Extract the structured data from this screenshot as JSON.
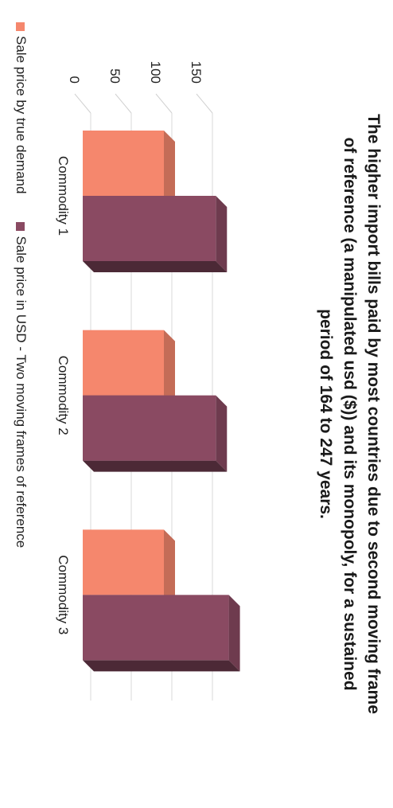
{
  "chart_data": {
    "type": "bar",
    "title": "The higher import bills paid by most countries due to second moving frame of reference (a manipulated usd ($)) and its monopoly, for a sustained period of 164 to 247 years.",
    "categories": [
      "Commodity 1",
      "Commodity 2",
      "Commodity 3"
    ],
    "series": [
      {
        "name": "Sale price by true demand",
        "values": [
          100,
          100,
          100
        ],
        "color": "#f5876d"
      },
      {
        "name": "Sale price in USD - Two moving frames of reference",
        "values": [
          164,
          164,
          180
        ],
        "color": "#8a4a62"
      }
    ],
    "yticks": [
      0,
      50,
      100,
      150
    ],
    "ylim": [
      0,
      200
    ],
    "three_d": true,
    "grid": true,
    "legend_position": "bottom"
  }
}
